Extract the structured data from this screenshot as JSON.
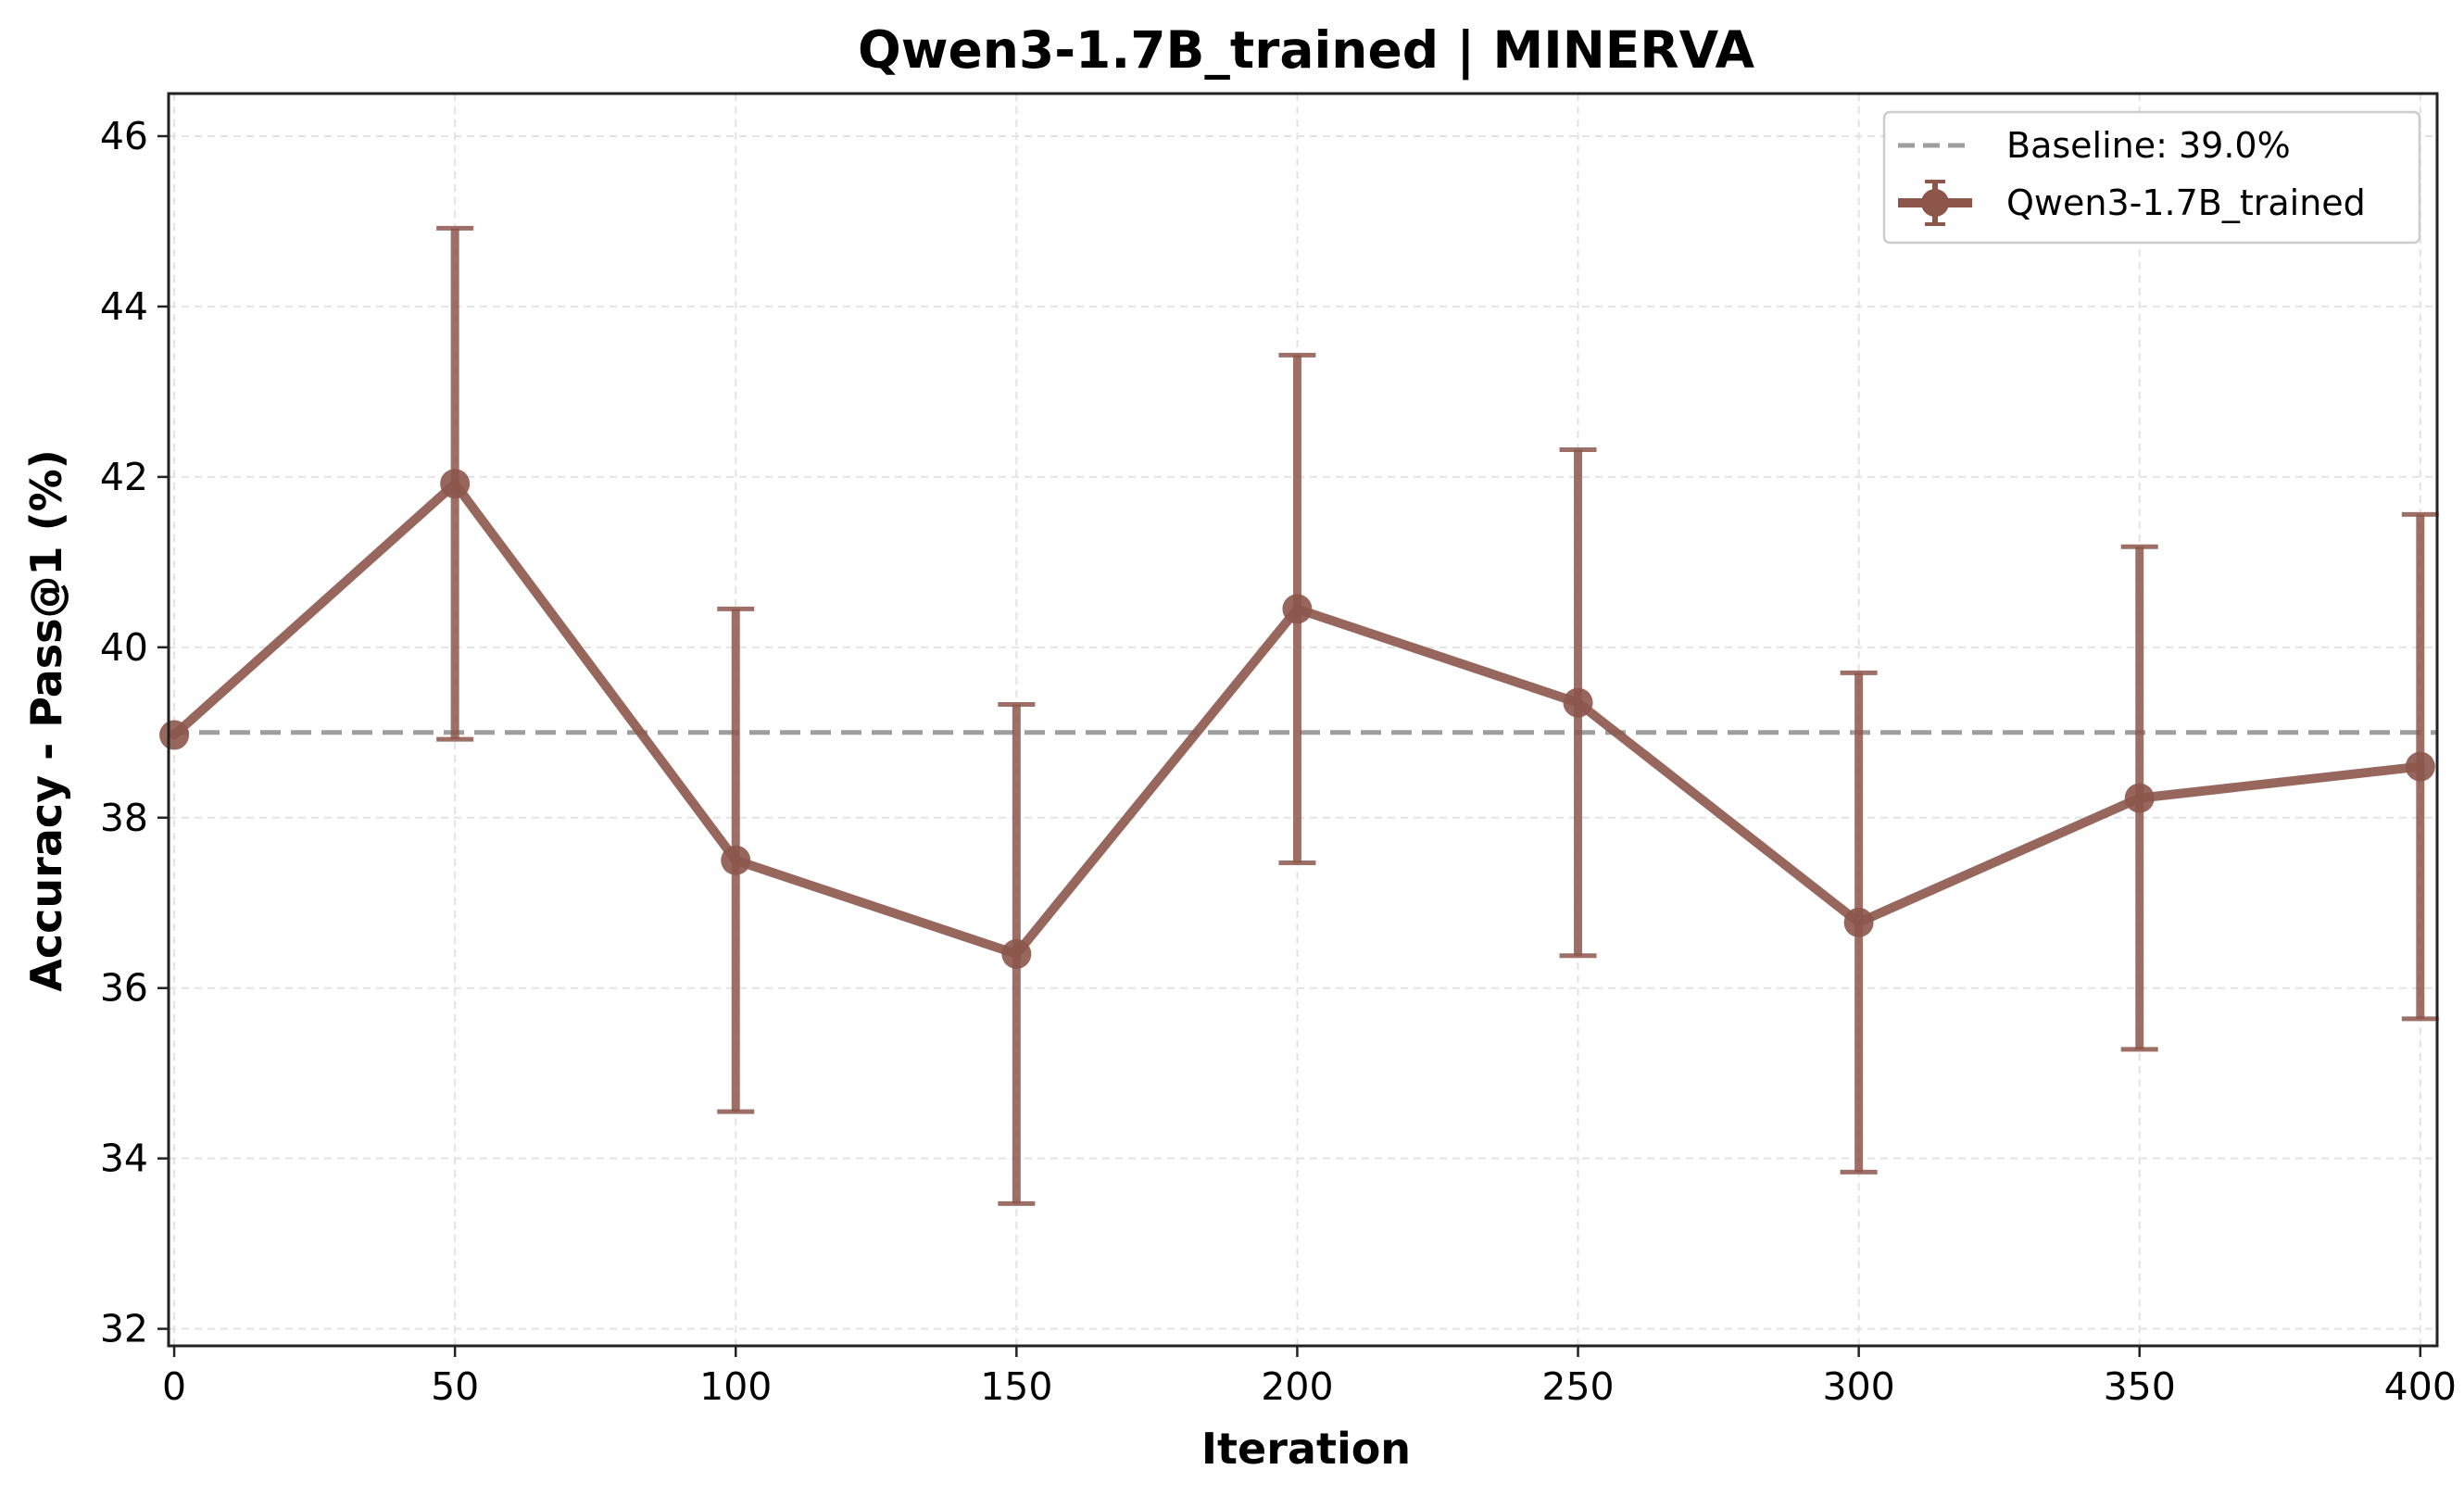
{
  "chart_data": {
    "type": "line",
    "title": "Qwen3-1.7B_trained | MINERVA",
    "xlabel": "Iteration",
    "ylabel": "Accuracy - Pass@1 (%)",
    "xlim": [
      -1,
      403
    ],
    "ylim": [
      31.8,
      46.5
    ],
    "xticks": [
      0,
      50,
      100,
      150,
      200,
      250,
      300,
      350,
      400
    ],
    "yticks": [
      32,
      34,
      36,
      38,
      40,
      42,
      44,
      46
    ],
    "grid": true,
    "legend_position": "top-right",
    "baseline": {
      "label": "Baseline: 39.0%",
      "value": 39.0,
      "color": "#9e9e9e",
      "style": "dashed"
    },
    "series": [
      {
        "name": "Qwen3-1.7B_trained",
        "color": "#8c564b",
        "x": [
          0,
          50,
          100,
          150,
          200,
          250,
          300,
          350,
          400
        ],
        "y": [
          38.97,
          41.92,
          37.5,
          36.4,
          40.45,
          39.35,
          36.77,
          38.23,
          38.6
        ],
        "error": [
          null,
          3.0,
          2.95,
          2.93,
          2.98,
          2.97,
          2.93,
          2.95,
          2.96
        ]
      }
    ]
  }
}
